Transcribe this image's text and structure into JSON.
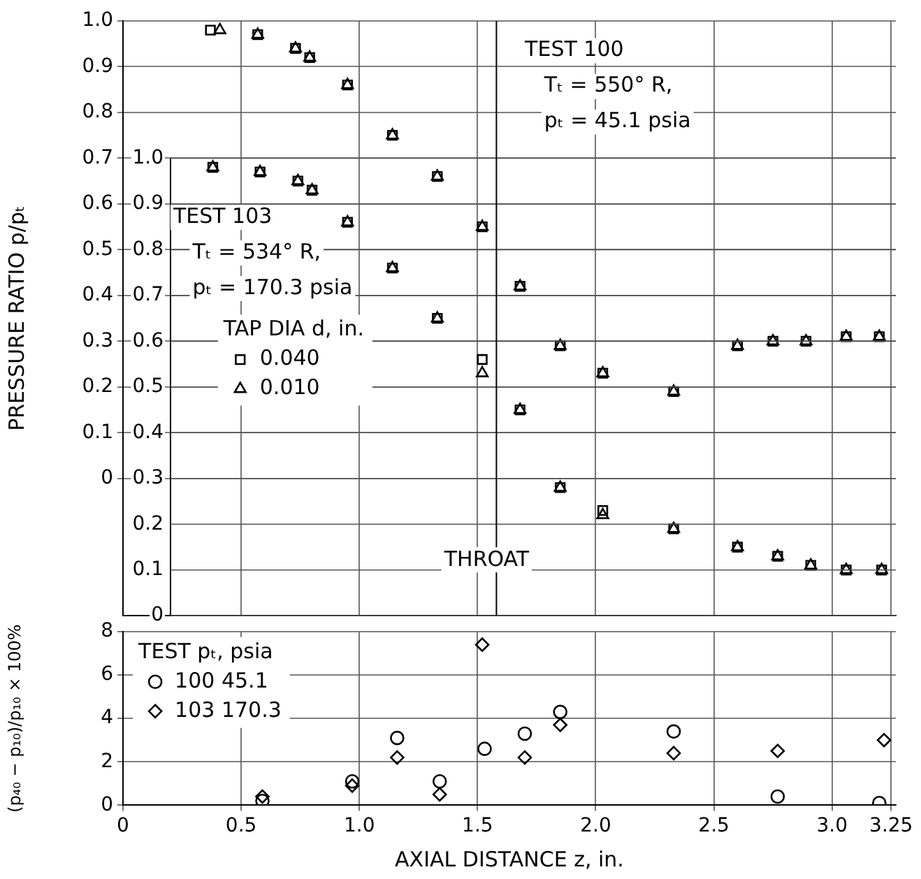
{
  "chart_data": [
    {
      "type": "scatter",
      "ylabel": "PRESSURE RATIO p/pₜ",
      "xlim": [
        0,
        3.27
      ],
      "xticks": [
        0,
        0.5,
        1,
        1.5,
        2,
        2.5,
        3,
        3.25
      ],
      "ylim": [
        -0.3,
        1.0
      ],
      "yticks": [
        0,
        0.1,
        0.2,
        0.3,
        0.4,
        0.5,
        0.6,
        0.7,
        0.8,
        0.9,
        {
          "value": 1,
          "label": "1.0"
        }
      ],
      "y2lim": [
        0,
        1.3
      ],
      "y2ticks": [
        0,
        0.1,
        0.2,
        0.3,
        0.4,
        0.5,
        0.6,
        0.7,
        0.8,
        0.9,
        {
          "value": 1,
          "label": "1.0"
        }
      ],
      "tick_labels": "y",
      "grid": true,
      "legend": "left",
      "legend_title": "TAP DIA d, in.",
      "series": [
        {
          "name": "0.040",
          "color": "#000000",
          "marker": "square",
          "x": [
            0.37,
            0.57,
            0.73,
            0.79,
            0.95,
            1.14,
            1.33,
            1.52,
            1.68,
            1.85,
            2.03,
            2.33,
            2.6,
            2.75,
            2.89,
            3.06,
            3.2
          ],
          "values": [
            0.98,
            0.97,
            0.94,
            0.92,
            0.86,
            0.75,
            0.66,
            0.55,
            0.42,
            0.29,
            0.23,
            0.19,
            0.29,
            0.3,
            0.3,
            0.31,
            0.31
          ]
        },
        {
          "name": "0.010",
          "color": "#000000",
          "marker": "triangle",
          "x": [
            0.41,
            0.57,
            0.73,
            0.79,
            0.95,
            1.14,
            1.33,
            1.52,
            1.68,
            1.85,
            2.03,
            2.33,
            2.6,
            2.75,
            2.89,
            3.06,
            3.2
          ],
          "values": [
            0.98,
            0.97,
            0.94,
            0.92,
            0.86,
            0.75,
            0.66,
            0.55,
            0.42,
            0.29,
            0.23,
            0.19,
            0.29,
            0.3,
            0.3,
            0.31,
            0.31
          ]
        },
        {
          "color": "#000000",
          "marker": "square",
          "axis": "y2",
          "x": [
            0.38,
            0.58,
            0.74,
            0.8,
            0.95,
            1.14,
            1.33,
            1.52,
            1.68,
            1.85,
            2.03,
            2.33,
            2.6,
            2.77,
            2.91,
            3.06,
            3.21
          ],
          "values": [
            0.98,
            0.97,
            0.95,
            0.93,
            0.86,
            0.76,
            0.65,
            0.56,
            0.45,
            0.28,
            0.23,
            0.19,
            0.15,
            0.13,
            0.11,
            0.1,
            0.1
          ]
        },
        {
          "color": "#000000",
          "marker": "triangle",
          "axis": "y2",
          "x": [
            0.38,
            0.58,
            0.74,
            0.8,
            0.95,
            1.14,
            1.33,
            1.52,
            1.68,
            1.85,
            2.03,
            2.33,
            2.6,
            2.77,
            2.91,
            3.06,
            3.21
          ],
          "values": [
            0.98,
            0.97,
            0.95,
            0.93,
            0.86,
            0.76,
            0.65,
            0.53,
            0.45,
            0.28,
            0.22,
            0.19,
            0.15,
            0.13,
            0.11,
            0.1,
            0.1
          ]
        }
      ],
      "ref_lines": [
        {
          "axis": "x",
          "value": 1.58,
          "label": "THROAT"
        }
      ],
      "annotations": [
        "TEST 100",
        "Tₜ = 550° R,",
        "pₜ = 45.1 psia",
        "TEST 103",
        "Tₜ = 534° R,",
        "pₜ = 170.3 psia"
      ]
    },
    {
      "type": "scatter",
      "xlabel": "AXIAL DISTANCE z, in.",
      "ylabel": "(p₄₀ − p₁₀)/p₁₀ × 100%",
      "xlim": [
        0,
        3.27
      ],
      "xticks": [
        0,
        0.5,
        {
          "value": 1,
          "label": "1.0"
        },
        1.5,
        {
          "value": 2,
          "label": "2.0"
        },
        2.5,
        {
          "value": 3,
          "label": "3.0"
        },
        3.25
      ],
      "ylim": [
        0,
        8
      ],
      "yticks": [
        0,
        2,
        4,
        6,
        8
      ],
      "grid": true,
      "legend": "top left",
      "legend_title": "TEST pₜ, psia",
      "series": [
        {
          "name": "100 45.1",
          "color": "#000000",
          "marker": "circle",
          "x": [
            0.59,
            0.97,
            1.16,
            1.34,
            1.53,
            1.7,
            1.85,
            2.33,
            2.77,
            3.2
          ],
          "values": [
            0.2,
            1.1,
            3.1,
            1.1,
            2.6,
            3.3,
            4.3,
            3.4,
            0.4,
            0.1
          ]
        },
        {
          "name": "103 170.3",
          "color": "#000000",
          "marker": "diamond",
          "x": [
            0.59,
            0.97,
            1.16,
            1.34,
            1.52,
            1.7,
            1.85,
            2.33,
            2.77,
            3.22
          ],
          "values": [
            0.4,
            0.9,
            2.2,
            0.5,
            7.4,
            2.2,
            3.7,
            2.4,
            2.5,
            3.0
          ]
        }
      ]
    }
  ]
}
